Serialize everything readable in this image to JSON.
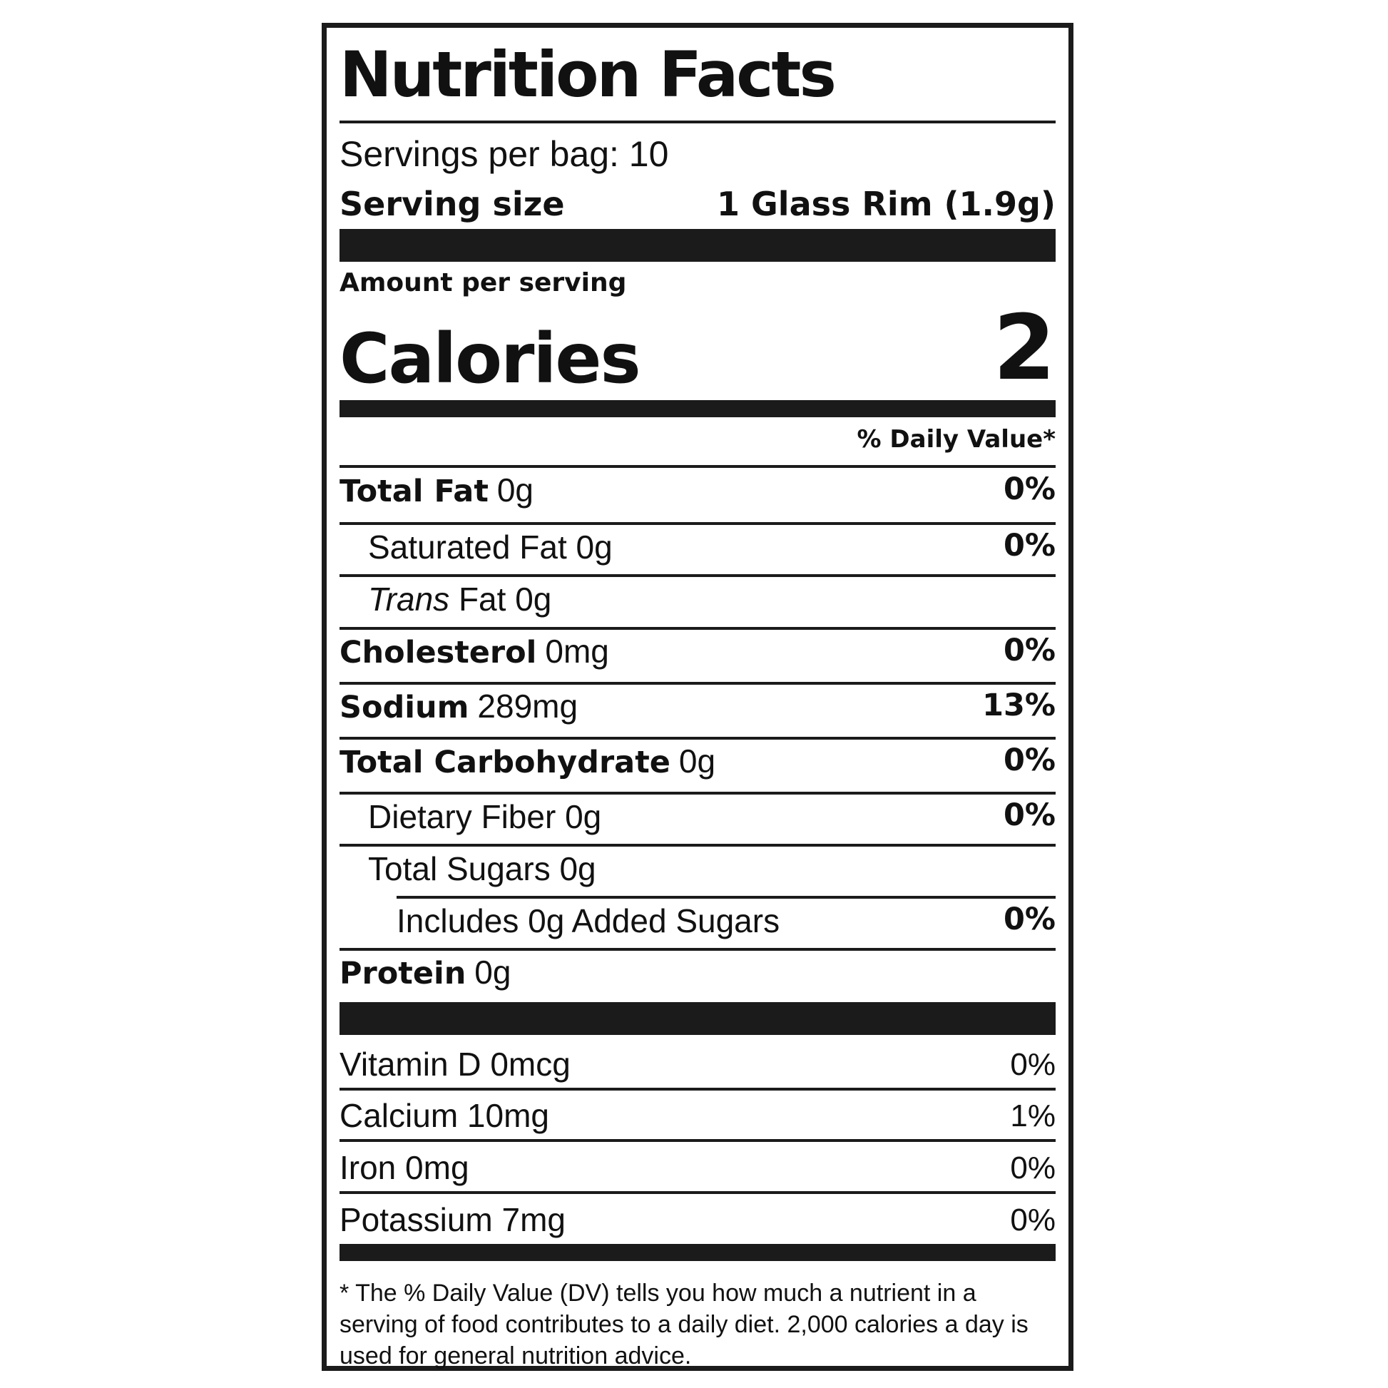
{
  "title": "Nutrition Facts",
  "servings_per_container": "Servings per bag: 10",
  "serving_size_label": "Serving size",
  "serving_size_value": "1 Glass Rim (1.9g)",
  "amount_per_serving": "Amount per serving",
  "calories_label": "Calories",
  "calories_value": "2",
  "dv_header": "% Daily Value*",
  "nutrients": {
    "total_fat": {
      "name": "Total Fat",
      "amount": "0g",
      "dv": "0%"
    },
    "saturated_fat": {
      "name": "Saturated Fat 0g",
      "dv": "0%"
    },
    "trans_fat": {
      "name_italic": "Trans",
      "name_rest": " Fat 0g"
    },
    "cholesterol": {
      "name": "Cholesterol",
      "amount": "0mg",
      "dv": "0%"
    },
    "sodium": {
      "name": "Sodium",
      "amount": "289mg",
      "dv": "13%"
    },
    "total_carbohydrate": {
      "name": "Total Carbohydrate",
      "amount": "0g",
      "dv": "0%"
    },
    "dietary_fiber": {
      "name": "Dietary Fiber 0g",
      "dv": "0%"
    },
    "total_sugars": {
      "name": "Total Sugars 0g"
    },
    "added_sugars": {
      "name": "Includes 0g Added Sugars",
      "dv": "0%"
    },
    "protein": {
      "name": "Protein",
      "amount": "0g"
    }
  },
  "vitamins": [
    {
      "name": "Vitamin D 0mcg",
      "dv": "0%"
    },
    {
      "name": "Calcium 10mg",
      "dv": "1%"
    },
    {
      "name": "Iron 0mg",
      "dv": "0%"
    },
    {
      "name": "Potassium 7mg",
      "dv": "0%"
    }
  ],
  "footnote": "* The % Daily Value (DV) tells you how much a nutrient in a serving of food contributes to a daily diet. 2,000 calories a day is used for general nutrition advice."
}
